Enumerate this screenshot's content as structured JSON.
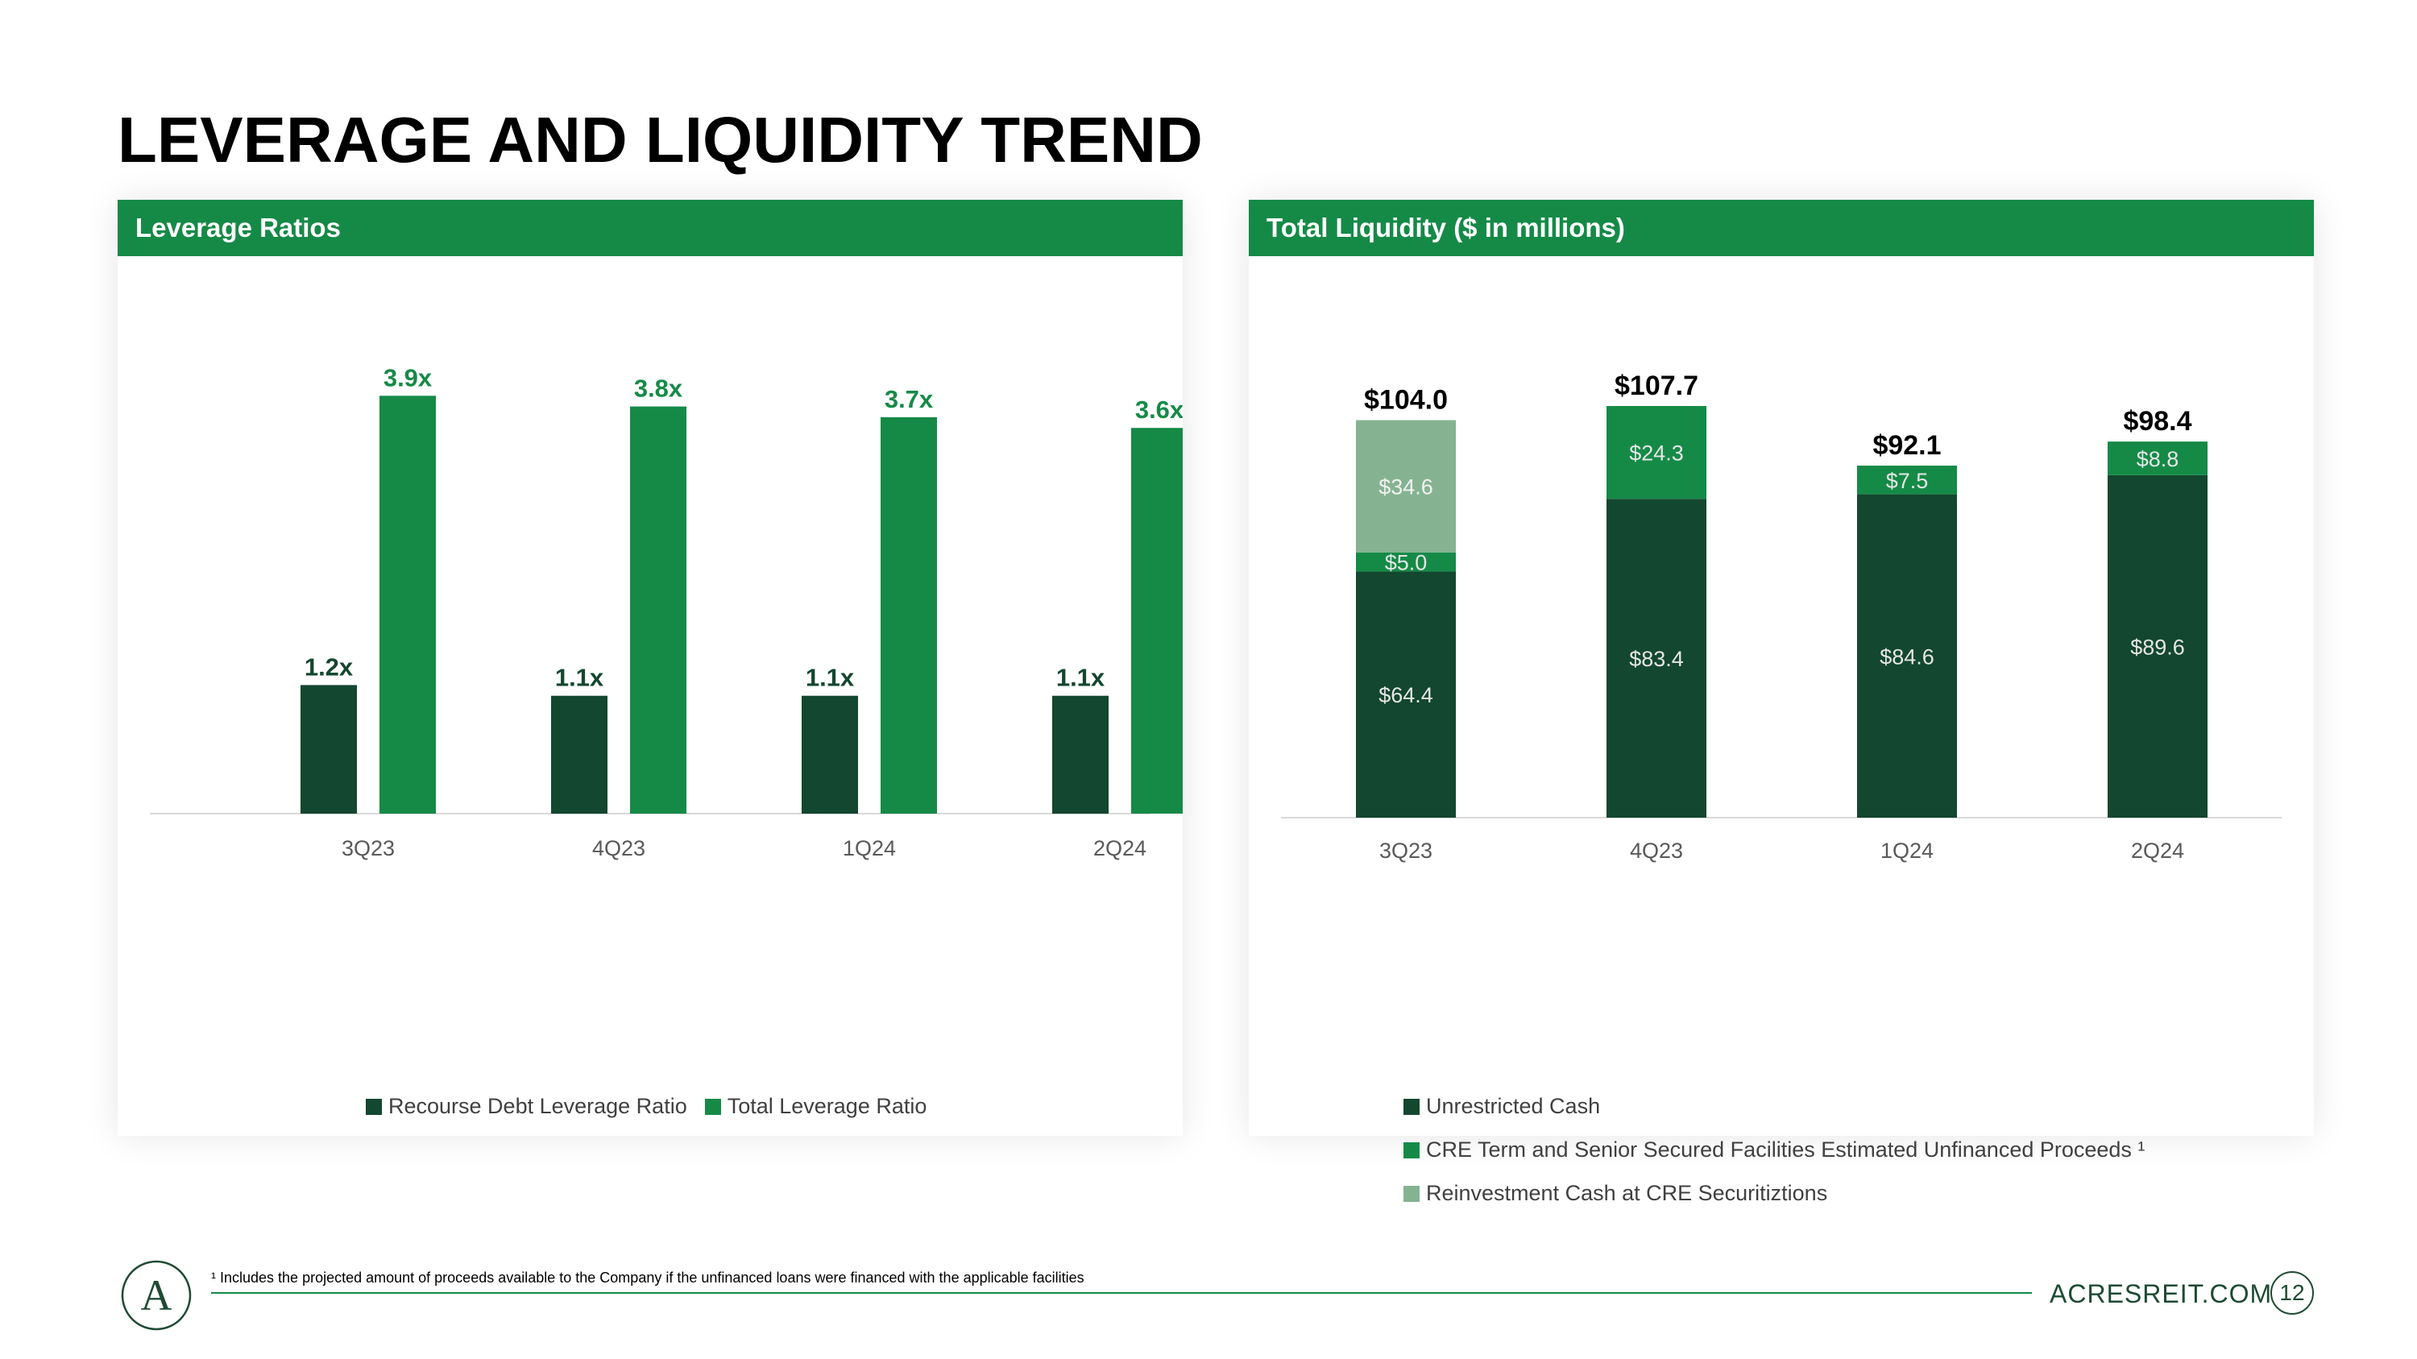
{
  "title": "LEVERAGE AND LIQUIDITY TREND",
  "footnote": "¹ Includes the projected amount of proceeds available to the Company if the unfinanced loans were financed with the applicable facilities",
  "website": "ACRESREIT.COM",
  "page_number": "12",
  "logo_letter": "A",
  "colors": {
    "brand_green": "#158a47",
    "dark_green": "#13472f",
    "light_green": "#85b391"
  },
  "chart_data": [
    {
      "type": "bar",
      "title": "Leverage Ratios",
      "categories": [
        "3Q23",
        "4Q23",
        "1Q24",
        "2Q24"
      ],
      "series": [
        {
          "name": "Recourse Debt Leverage Ratio",
          "values": [
            1.2,
            1.1,
            1.1,
            1.1
          ],
          "labels": [
            "1.2x",
            "1.1x",
            "1.1x",
            "1.1x"
          ],
          "color": "#13472f"
        },
        {
          "name": "Total Leverage Ratio",
          "values": [
            3.9,
            3.8,
            3.7,
            3.6
          ],
          "labels": [
            "3.9x",
            "3.8x",
            "3.7x",
            "3.6x"
          ],
          "color": "#158a47"
        }
      ],
      "ylim": [
        0,
        4.0
      ],
      "legend": "bottom"
    },
    {
      "type": "stacked-bar",
      "title": "Total Liquidity ($ in millions)",
      "categories": [
        "3Q23",
        "4Q23",
        "1Q24",
        "2Q24"
      ],
      "series": [
        {
          "name": "Unrestricted Cash",
          "values": [
            64.4,
            83.4,
            84.6,
            89.6
          ],
          "labels": [
            "$64.4",
            "$83.4",
            "$84.6",
            "$89.6"
          ],
          "color": "#13472f"
        },
        {
          "name": "CRE Term and Senior Secured Facilities Estimated Unfinanced Proceeds ¹",
          "values": [
            5.0,
            24.3,
            7.5,
            8.8
          ],
          "labels": [
            "$5.0",
            "$24.3",
            "$7.5",
            "$8.8"
          ],
          "color": "#158a47"
        },
        {
          "name": "Reinvestment Cash at CRE Securitiztions",
          "values": [
            34.6,
            0,
            0,
            0
          ],
          "labels": [
            "$34.6",
            "",
            "",
            ""
          ],
          "color": "#85b391"
        }
      ],
      "totals": [
        104.0,
        107.7,
        92.1,
        98.4
      ],
      "total_labels": [
        "$104.0",
        "$107.7",
        "$92.1",
        "$98.4"
      ],
      "ylim": [
        0,
        107.7
      ],
      "legend": "bottom-left"
    }
  ]
}
